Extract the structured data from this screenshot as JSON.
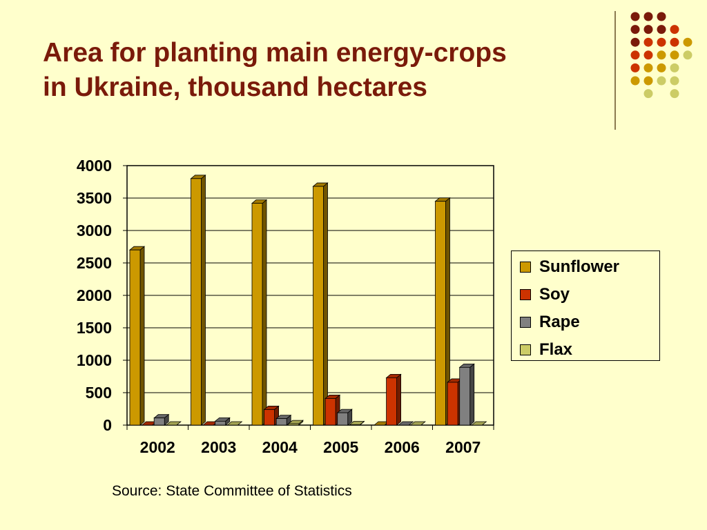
{
  "slide": {
    "title_line1": "Area for planting main energy-crops",
    "title_line2": "in Ukraine, thousand hectares",
    "source": "Source: State Committee of Statistics"
  },
  "colors": {
    "background": "#ffffcc",
    "title": "#7a1a0a",
    "sunflower": "#cc9900",
    "soy": "#cc3300",
    "rape": "#808080",
    "flax": "#cccc66"
  },
  "chart_data": {
    "type": "bar",
    "title": "",
    "xlabel": "",
    "ylabel": "",
    "categories": [
      "2002",
      "2003",
      "2004",
      "2005",
      "2006",
      "2007"
    ],
    "series": [
      {
        "name": "Sunflower",
        "color": "#cc9900",
        "values": [
          2700,
          3800,
          3420,
          3680,
          0,
          3450
        ]
      },
      {
        "name": "Soy",
        "color": "#cc3300",
        "values": [
          0,
          0,
          240,
          410,
          730,
          660
        ]
      },
      {
        "name": "Rape",
        "color": "#808080",
        "values": [
          110,
          60,
          100,
          190,
          0,
          890
        ]
      },
      {
        "name": "Flax",
        "color": "#cccc66",
        "values": [
          0,
          0,
          20,
          5,
          0,
          0
        ]
      }
    ],
    "ylim": [
      0,
      4000
    ],
    "yticks": [
      0,
      500,
      1000,
      1500,
      2000,
      2500,
      3000,
      3500,
      4000
    ],
    "grid": true,
    "legend": "right"
  }
}
